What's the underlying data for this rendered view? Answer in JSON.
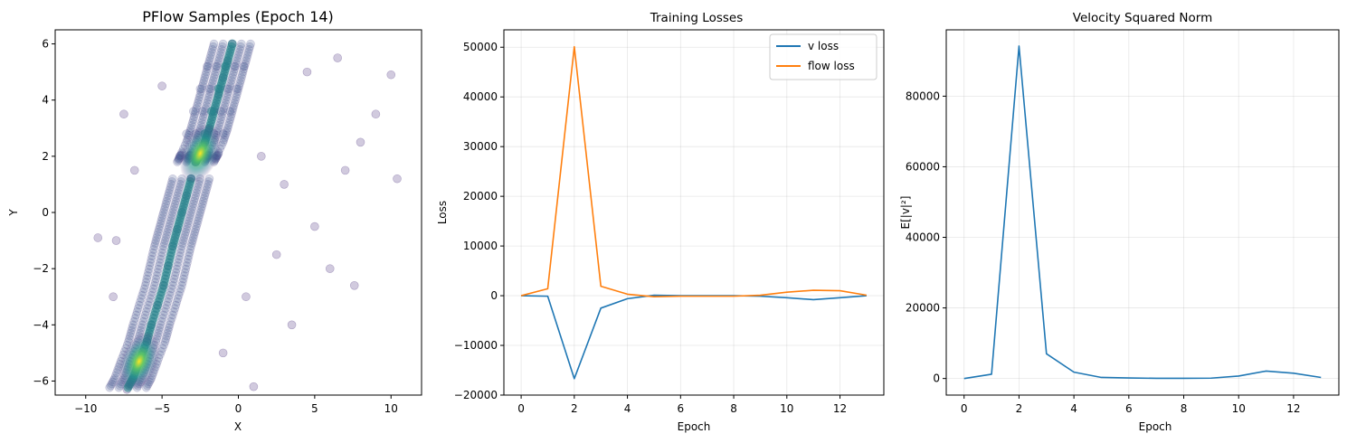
{
  "chart_data": [
    {
      "type": "scatter",
      "title": "PFlow Samples (Epoch 14)",
      "xlabel": "X",
      "ylabel": "Y",
      "xlim": [
        -12,
        12
      ],
      "ylim": [
        -6.5,
        6.5
      ],
      "xticks": [
        -10,
        -5,
        0,
        5,
        10
      ],
      "xtick_labels": [
        "−10",
        "−5",
        "0",
        "5",
        "10"
      ],
      "yticks": [
        -6,
        -4,
        -2,
        0,
        2,
        4,
        6
      ],
      "ytick_labels": [
        "−6",
        "−4",
        "−2",
        "0",
        "2",
        "4",
        "6"
      ],
      "grid": false,
      "colormap": "viridis",
      "point_color": "#472d7b",
      "density_peaks": [
        {
          "x": -2.5,
          "y": 2.1
        },
        {
          "x": -6.5,
          "y": -5.3
        }
      ],
      "points": [
        {
          "x": -2.5,
          "y": 2.1
        },
        {
          "x": -2.8,
          "y": 1.8
        },
        {
          "x": -2.2,
          "y": 2.5
        },
        {
          "x": -1.9,
          "y": 3.0
        },
        {
          "x": -1.6,
          "y": 3.6
        },
        {
          "x": -1.3,
          "y": 4.2
        },
        {
          "x": -1.0,
          "y": 4.8
        },
        {
          "x": -0.7,
          "y": 5.4
        },
        {
          "x": -0.4,
          "y": 6.0
        },
        {
          "x": -3.1,
          "y": 1.2
        },
        {
          "x": -3.4,
          "y": 0.6
        },
        {
          "x": -3.7,
          "y": 0.0
        },
        {
          "x": -4.0,
          "y": -0.6
        },
        {
          "x": -4.3,
          "y": -1.2
        },
        {
          "x": -4.6,
          "y": -1.9
        },
        {
          "x": -4.9,
          "y": -2.6
        },
        {
          "x": -5.3,
          "y": -3.3
        },
        {
          "x": -5.7,
          "y": -4.0
        },
        {
          "x": -6.0,
          "y": -4.6
        },
        {
          "x": -6.5,
          "y": -5.3
        },
        {
          "x": -6.9,
          "y": -5.9
        },
        {
          "x": -7.3,
          "y": -6.3
        },
        {
          "x": 1.5,
          "y": 2.0
        },
        {
          "x": 3.0,
          "y": 1.0
        },
        {
          "x": 5.0,
          "y": -0.5
        },
        {
          "x": 7.0,
          "y": 1.5
        },
        {
          "x": 8.0,
          "y": 2.5
        },
        {
          "x": 9.0,
          "y": 3.5
        },
        {
          "x": 10.4,
          "y": 1.2
        },
        {
          "x": 10.0,
          "y": 4.9
        },
        {
          "x": 7.6,
          "y": -2.6
        },
        {
          "x": 6.5,
          "y": 5.5
        },
        {
          "x": 4.5,
          "y": 5.0
        },
        {
          "x": 2.5,
          "y": -1.5
        },
        {
          "x": 0.5,
          "y": -3.0
        },
        {
          "x": -1.0,
          "y": -5.0
        },
        {
          "x": 1.0,
          "y": -6.2
        },
        {
          "x": -8.0,
          "y": -1.0
        },
        {
          "x": -9.2,
          "y": -0.9
        },
        {
          "x": -6.8,
          "y": 1.5
        },
        {
          "x": -7.5,
          "y": 3.5
        },
        {
          "x": -5.0,
          "y": 4.5
        },
        {
          "x": -8.2,
          "y": -3.0
        },
        {
          "x": 3.5,
          "y": -4.0
        },
        {
          "x": 6.0,
          "y": -2.0
        }
      ]
    },
    {
      "type": "line",
      "title": "Training Losses",
      "xlabel": "Epoch",
      "ylabel": "Loss",
      "xlim": [
        -0.65,
        13.65
      ],
      "ylim": [
        -20000,
        53500
      ],
      "xticks": [
        0,
        2,
        4,
        6,
        8,
        10,
        12
      ],
      "xtick_labels": [
        "0",
        "2",
        "4",
        "6",
        "8",
        "10",
        "12"
      ],
      "yticks": [
        -20000,
        -10000,
        0,
        10000,
        20000,
        30000,
        40000,
        50000
      ],
      "ytick_labels": [
        "−20000",
        "−10000",
        "0",
        "10000",
        "20000",
        "30000",
        "40000",
        "50000"
      ],
      "grid": true,
      "legend_position": "top-right",
      "x": [
        0,
        1,
        2,
        3,
        4,
        5,
        6,
        7,
        8,
        9,
        10,
        11,
        12,
        13
      ],
      "series": [
        {
          "name": "v loss",
          "color": "#1f77b4",
          "values": [
            0,
            -100,
            -16700,
            -2500,
            -600,
            100,
            0,
            0,
            0,
            -100,
            -400,
            -800,
            -400,
            0
          ]
        },
        {
          "name": "flow loss",
          "color": "#ff7f0e",
          "values": [
            0,
            1400,
            50100,
            1900,
            300,
            -200,
            -100,
            -100,
            -100,
            100,
            700,
            1100,
            1000,
            100
          ]
        }
      ]
    },
    {
      "type": "line",
      "title": "Velocity Squared Norm",
      "xlabel": "Epoch",
      "ylabel": "E[|v|²]",
      "xlim": [
        -0.65,
        13.65
      ],
      "ylim": [
        -4700,
        98800
      ],
      "xticks": [
        0,
        2,
        4,
        6,
        8,
        10,
        12
      ],
      "xtick_labels": [
        "0",
        "2",
        "4",
        "6",
        "8",
        "10",
        "12"
      ],
      "yticks": [
        0,
        20000,
        40000,
        60000,
        80000
      ],
      "ytick_labels": [
        "0",
        "20000",
        "40000",
        "60000",
        "80000"
      ],
      "grid": true,
      "x": [
        0,
        1,
        2,
        3,
        4,
        5,
        6,
        7,
        8,
        9,
        10,
        11,
        12,
        13
      ],
      "series": [
        {
          "color": "#1f77b4",
          "values": [
            0,
            1200,
            94200,
            7000,
            1800,
            300,
            150,
            50,
            50,
            100,
            700,
            2100,
            1500,
            300
          ]
        }
      ]
    }
  ]
}
